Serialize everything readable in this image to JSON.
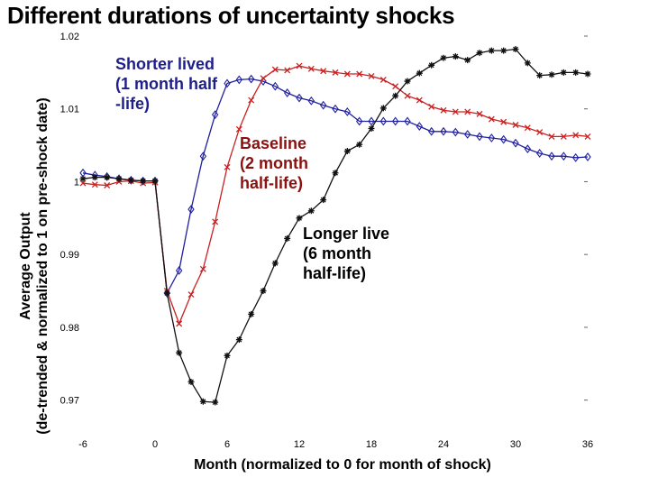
{
  "chart_data": {
    "type": "line",
    "title": "Different durations of uncertainty shocks",
    "xlabel": "Month (normalized to 0 for month of shock)",
    "ylabel_lines": [
      "Average Output",
      "(de-trended & normalized to 1 on pre-shock date)"
    ],
    "xlim": [
      -6,
      36
    ],
    "ylim": [
      0.965,
      1.02
    ],
    "xticks": [
      -6,
      0,
      6,
      12,
      18,
      24,
      30,
      36
    ],
    "xtick_labels": [
      "-6",
      "0",
      "6",
      "12",
      "18",
      "24",
      "30",
      "36"
    ],
    "yticks": [
      0.97,
      0.98,
      0.99,
      1,
      1.01,
      1.02
    ],
    "ytick_labels": [
      "0.97",
      "0.98",
      "0.99",
      "1",
      "1.01",
      "1.02"
    ],
    "grid": false,
    "series": [
      {
        "key": "shorter",
        "color": "#1f1fa0",
        "marker": "diamond",
        "x": [
          -6,
          -5,
          -4,
          -3,
          -2,
          -1,
          0,
          1,
          2,
          3,
          4,
          5,
          6,
          7,
          8,
          9,
          10,
          11,
          12,
          13,
          14,
          15,
          16,
          17,
          18,
          19,
          20,
          21,
          22,
          23,
          24,
          25,
          26,
          27,
          28,
          29,
          30,
          31,
          32,
          33,
          34,
          35,
          36
        ],
        "values": [
          1.0012,
          1.0009,
          1.0007,
          1.0004,
          1.0002,
          1.0001,
          1.0001,
          0.9847,
          0.9878,
          0.9962,
          1.0035,
          1.0092,
          1.0135,
          1.014,
          1.0141,
          1.0138,
          1.0131,
          1.0122,
          1.0115,
          1.0111,
          1.0105,
          1.01,
          1.0096,
          1.0083,
          1.0083,
          1.0083,
          1.0083,
          1.0083,
          1.0076,
          1.0069,
          1.0069,
          1.0068,
          1.0065,
          1.0062,
          1.006,
          1.0058,
          1.0053,
          1.0045,
          1.0039,
          1.0035,
          1.0035,
          1.0033,
          1.0034
        ]
      },
      {
        "key": "baseline",
        "color": "#cc2020",
        "marker": "x",
        "x": [
          -6,
          -5,
          -4,
          -3,
          -2,
          -1,
          0,
          1,
          2,
          3,
          4,
          5,
          6,
          7,
          8,
          9,
          10,
          11,
          12,
          13,
          14,
          15,
          16,
          17,
          18,
          19,
          20,
          21,
          22,
          23,
          24,
          25,
          26,
          27,
          28,
          29,
          30,
          31,
          32,
          33,
          34,
          35,
          36
        ],
        "values": [
          0.9998,
          0.9996,
          0.9995,
          1.0,
          1.0001,
          0.9998,
          0.9999,
          0.985,
          0.9805,
          0.9845,
          0.988,
          0.9945,
          1.002,
          1.0072,
          1.0112,
          1.0142,
          1.0154,
          1.0153,
          1.0159,
          1.0155,
          1.0152,
          1.015,
          1.0148,
          1.0148,
          1.0145,
          1.014,
          1.0131,
          1.0118,
          1.0112,
          1.0103,
          1.0098,
          1.0096,
          1.0096,
          1.0093,
          1.0086,
          1.0082,
          1.0078,
          1.0074,
          1.0068,
          1.0062,
          1.0062,
          1.0064,
          1.0062
        ]
      },
      {
        "key": "longer",
        "color": "#111111",
        "marker": "star",
        "x": [
          -6,
          -5,
          -4,
          -3,
          -2,
          -1,
          0,
          1,
          2,
          3,
          4,
          5,
          6,
          7,
          8,
          9,
          10,
          11,
          12,
          13,
          14,
          15,
          16,
          17,
          18,
          19,
          20,
          21,
          22,
          23,
          24,
          25,
          26,
          27,
          28,
          29,
          30,
          31,
          32,
          33,
          34,
          35,
          36
        ],
        "values": [
          1.0004,
          1.0006,
          1.0006,
          1.0004,
          1.0002,
          1.0001,
          1.0001,
          0.9847,
          0.9765,
          0.9725,
          0.9698,
          0.9697,
          0.9761,
          0.9783,
          0.9818,
          0.985,
          0.9888,
          0.9922,
          0.995,
          0.996,
          0.9975,
          1.0012,
          1.0042,
          1.0051,
          1.0073,
          1.0101,
          1.0118,
          1.0138,
          1.0149,
          1.016,
          1.017,
          1.0172,
          1.0167,
          1.0177,
          1.018,
          1.018,
          1.0182,
          1.0163,
          1.0146,
          1.0147,
          1.015,
          1.015,
          1.0148
        ]
      }
    ],
    "annotations": [
      {
        "lines": [
          "Shorter lived",
          "(1 month half",
          "-life)"
        ],
        "color": "#1f1f8a"
      },
      {
        "lines": [
          "Baseline",
          "(2 month",
          "half-life)"
        ],
        "color": "#8b1010"
      },
      {
        "lines": [
          "Longer live",
          "(6 month",
          "half-life)"
        ],
        "color": "#000000"
      }
    ]
  }
}
